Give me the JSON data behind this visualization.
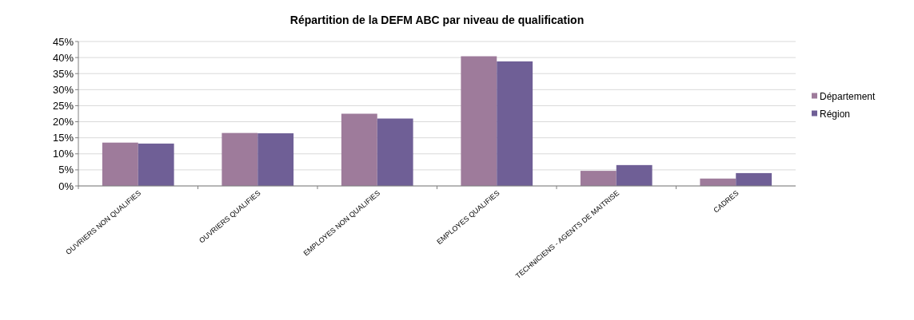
{
  "chart_data": {
    "type": "bar",
    "title": "Répartition de la DEFM ABC par niveau de qualification",
    "categories": [
      "OUVRIERS NON QUALIFIES",
      "OUVRIERS QUALIFIES",
      "EMPLOYES NON QUALIFIES",
      "EMPLOYES QUALIFIES",
      "TECHNICIENS - AGENTS DE MAITRISE",
      "CADRES"
    ],
    "series": [
      {
        "name": "Département",
        "color": "#9e7b9b",
        "values": [
          13.5,
          16.5,
          22.5,
          40.4,
          4.7,
          2.3
        ]
      },
      {
        "name": "Région",
        "color": "#6f5f96",
        "values": [
          13.2,
          16.4,
          21.0,
          38.8,
          6.5,
          4.0
        ]
      }
    ],
    "ylim": [
      0,
      45
    ],
    "yticks": [
      {
        "value": 0,
        "label": "0%"
      },
      {
        "value": 5,
        "label": "5%"
      },
      {
        "value": 10,
        "label": "10%"
      },
      {
        "value": 15,
        "label": "15%"
      },
      {
        "value": 20,
        "label": "20%"
      },
      {
        "value": 25,
        "label": "25%"
      },
      {
        "value": 30,
        "label": "30%"
      },
      {
        "value": 35,
        "label": "35%"
      },
      {
        "value": 40,
        "label": "40%"
      },
      {
        "value": 45,
        "label": "45%"
      }
    ],
    "grid": "y",
    "legend": "right"
  }
}
